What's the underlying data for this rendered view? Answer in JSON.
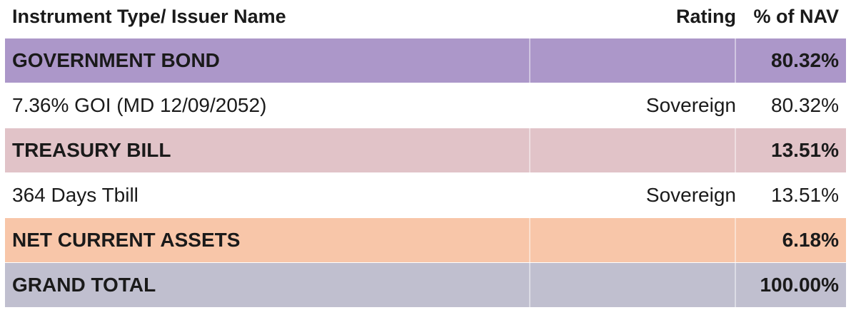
{
  "header": {
    "name": "Instrument Type/ Issuer Name",
    "rating": "Rating",
    "nav": "% of NAV"
  },
  "rows": [
    {
      "type": "group",
      "name": "GOVERNMENT BOND",
      "rating": "",
      "nav": "80.32%",
      "color": "#ac97c9"
    },
    {
      "type": "detail",
      "name": "7.36% GOI (MD 12/09/2052)",
      "rating": "Sovereign",
      "nav": "80.32%"
    },
    {
      "type": "group",
      "name": "TREASURY BILL",
      "rating": "",
      "nav": "13.51%",
      "color": "#e1c3c8"
    },
    {
      "type": "detail",
      "name": "364 Days Tbill",
      "rating": "Sovereign",
      "nav": "13.51%"
    },
    {
      "type": "group",
      "name": "NET CURRENT ASSETS",
      "rating": "",
      "nav": "6.18%",
      "color": "#f8c6a9"
    },
    {
      "type": "group",
      "name": "GRAND TOTAL",
      "rating": "",
      "nav": "100.00%",
      "color": "#c0bfcf"
    }
  ]
}
